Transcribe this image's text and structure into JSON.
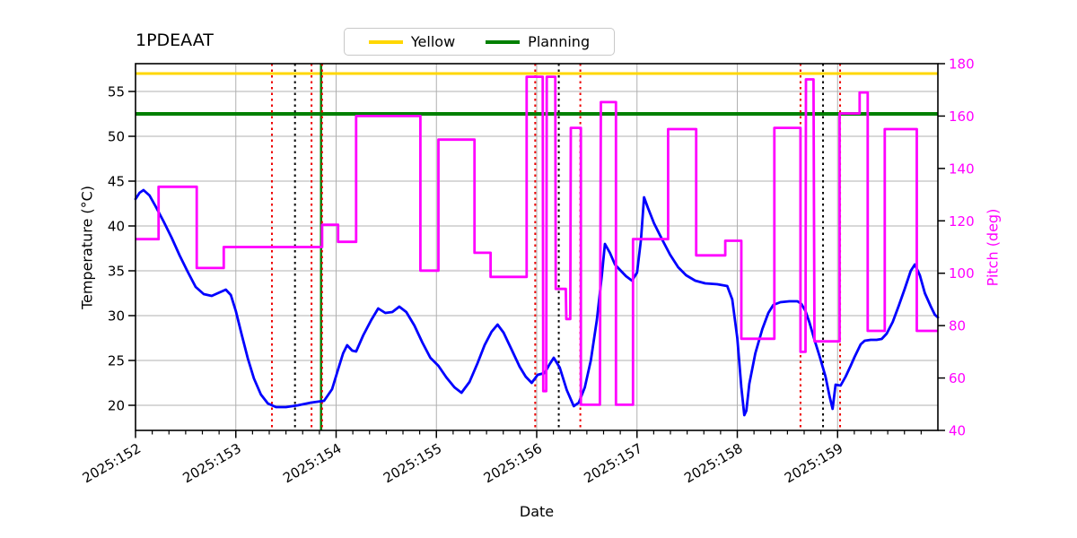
{
  "title": "1PDEAAT",
  "legend": {
    "items": [
      {
        "label": "Yellow",
        "color": "#ffd700"
      },
      {
        "label": "Planning",
        "color": "#008000"
      }
    ]
  },
  "chart_data": {
    "type": "line",
    "title": "1PDEAAT",
    "xlabel": "Date",
    "ylabel_left": "Temperature (°C)",
    "ylabel_right": "Pitch (deg)",
    "grid": true,
    "legend_position": "top-center",
    "x_tick_labels": [
      "2025:152",
      "2025:153",
      "2025:154",
      "2025:155",
      "2025:156",
      "2025:157",
      "2025:158",
      "2025:159"
    ],
    "x_tick_days": [
      152,
      153,
      154,
      155,
      156,
      157,
      158,
      159
    ],
    "x_range_days": [
      152.0,
      160.0
    ],
    "minor_ticks_per_day": 6,
    "y_left_ticks": [
      20,
      25,
      30,
      35,
      40,
      45,
      50,
      55
    ],
    "y_left_range": [
      17.2,
      58.1
    ],
    "y_right_ticks": [
      40,
      60,
      80,
      100,
      120,
      140,
      160,
      180
    ],
    "y_right_range": [
      40,
      180
    ],
    "colors": {
      "temperature": "#0000ff",
      "pitch": "#ff00ff",
      "yellow_limit": "#ffd700",
      "planning_limit": "#008000",
      "red_event": "#ee0000",
      "black_event": "#000000",
      "green_event": "#008000",
      "grid": "#b0b0b0"
    },
    "limit_lines": [
      {
        "name": "Yellow",
        "axis": "left",
        "value": 57.0,
        "color": "#ffd700",
        "width": 3
      },
      {
        "name": "Planning",
        "axis": "left",
        "value": 52.5,
        "color": "#008000",
        "width": 4
      }
    ],
    "event_lines": {
      "green_solid_days": [
        153.85
      ],
      "red_dotted_days": [
        153.36,
        153.755,
        153.86,
        155.985,
        156.435,
        158.63,
        159.025
      ],
      "black_dotted_days": [
        153.59,
        156.22,
        158.855
      ]
    },
    "series": [
      {
        "name": "temperature",
        "axis": "left",
        "color": "#0000ff",
        "points": [
          [
            152.0,
            43.0
          ],
          [
            152.04,
            43.7
          ],
          [
            152.08,
            44.0
          ],
          [
            152.14,
            43.4
          ],
          [
            152.2,
            42.2
          ],
          [
            152.28,
            40.5
          ],
          [
            152.36,
            38.7
          ],
          [
            152.44,
            36.7
          ],
          [
            152.52,
            34.9
          ],
          [
            152.6,
            33.2
          ],
          [
            152.68,
            32.4
          ],
          [
            152.76,
            32.2
          ],
          [
            152.84,
            32.6
          ],
          [
            152.9,
            32.9
          ],
          [
            152.95,
            32.3
          ],
          [
            153.0,
            30.5
          ],
          [
            153.06,
            27.8
          ],
          [
            153.12,
            25.2
          ],
          [
            153.18,
            23.0
          ],
          [
            153.25,
            21.2
          ],
          [
            153.32,
            20.2
          ],
          [
            153.4,
            19.8
          ],
          [
            153.5,
            19.8
          ],
          [
            153.62,
            20.0
          ],
          [
            153.75,
            20.3
          ],
          [
            153.88,
            20.5
          ],
          [
            153.96,
            21.8
          ],
          [
            154.02,
            24.0
          ],
          [
            154.07,
            25.8
          ],
          [
            154.11,
            26.7
          ],
          [
            154.16,
            26.1
          ],
          [
            154.2,
            26.0
          ],
          [
            154.27,
            27.8
          ],
          [
            154.35,
            29.5
          ],
          [
            154.42,
            30.8
          ],
          [
            154.49,
            30.3
          ],
          [
            154.56,
            30.4
          ],
          [
            154.63,
            31.0
          ],
          [
            154.7,
            30.4
          ],
          [
            154.78,
            28.9
          ],
          [
            154.86,
            27.0
          ],
          [
            154.94,
            25.3
          ],
          [
            155.02,
            24.4
          ],
          [
            155.1,
            23.1
          ],
          [
            155.18,
            22.0
          ],
          [
            155.25,
            21.4
          ],
          [
            155.33,
            22.6
          ],
          [
            155.41,
            24.7
          ],
          [
            155.48,
            26.7
          ],
          [
            155.55,
            28.2
          ],
          [
            155.61,
            29.0
          ],
          [
            155.67,
            28.1
          ],
          [
            155.75,
            26.2
          ],
          [
            155.83,
            24.3
          ],
          [
            155.89,
            23.2
          ],
          [
            155.95,
            22.5
          ],
          [
            156.01,
            23.4
          ],
          [
            156.08,
            23.6
          ],
          [
            156.13,
            24.6
          ],
          [
            156.17,
            25.3
          ],
          [
            156.23,
            24.2
          ],
          [
            156.3,
            21.7
          ],
          [
            156.37,
            19.9
          ],
          [
            156.42,
            20.3
          ],
          [
            156.48,
            22.0
          ],
          [
            156.54,
            25.0
          ],
          [
            156.6,
            29.5
          ],
          [
            156.65,
            34.5
          ],
          [
            156.68,
            38.0
          ],
          [
            156.73,
            37.0
          ],
          [
            156.78,
            35.7
          ],
          [
            156.83,
            35.1
          ],
          [
            156.89,
            34.4
          ],
          [
            156.95,
            33.9
          ],
          [
            157.0,
            34.8
          ],
          [
            157.04,
            38.5
          ],
          [
            157.07,
            43.2
          ],
          [
            157.11,
            42.0
          ],
          [
            157.17,
            40.3
          ],
          [
            157.25,
            38.5
          ],
          [
            157.33,
            36.8
          ],
          [
            157.41,
            35.4
          ],
          [
            157.49,
            34.5
          ],
          [
            157.58,
            33.9
          ],
          [
            157.68,
            33.6
          ],
          [
            157.8,
            33.5
          ],
          [
            157.9,
            33.3
          ],
          [
            157.95,
            31.8
          ],
          [
            158.0,
            27.5
          ],
          [
            158.04,
            22.0
          ],
          [
            158.07,
            18.9
          ],
          [
            158.09,
            19.4
          ],
          [
            158.12,
            22.4
          ],
          [
            158.18,
            25.8
          ],
          [
            158.25,
            28.5
          ],
          [
            158.31,
            30.3
          ],
          [
            158.36,
            31.2
          ],
          [
            158.43,
            31.5
          ],
          [
            158.52,
            31.6
          ],
          [
            158.6,
            31.6
          ],
          [
            158.64,
            31.3
          ],
          [
            158.68,
            30.5
          ],
          [
            158.72,
            29.2
          ],
          [
            158.77,
            27.3
          ],
          [
            158.82,
            25.5
          ],
          [
            158.88,
            23.2
          ],
          [
            158.92,
            21.0
          ],
          [
            158.95,
            19.6
          ],
          [
            158.98,
            22.3
          ],
          [
            159.03,
            22.2
          ],
          [
            159.08,
            23.2
          ],
          [
            159.13,
            24.4
          ],
          [
            159.17,
            25.4
          ],
          [
            159.23,
            26.8
          ],
          [
            159.27,
            27.2
          ],
          [
            159.33,
            27.3
          ],
          [
            159.39,
            27.3
          ],
          [
            159.44,
            27.4
          ],
          [
            159.49,
            28.0
          ],
          [
            159.55,
            29.3
          ],
          [
            159.61,
            31.1
          ],
          [
            159.67,
            33.0
          ],
          [
            159.73,
            35.0
          ],
          [
            159.77,
            35.7
          ],
          [
            159.82,
            34.5
          ],
          [
            159.87,
            32.5
          ],
          [
            159.93,
            31.0
          ],
          [
            159.97,
            30.1
          ],
          [
            160.0,
            29.8
          ]
        ]
      },
      {
        "name": "pitch",
        "axis": "right",
        "color": "#ff00ff",
        "steps": [
          [
            152.0,
            152.23,
            113
          ],
          [
            152.23,
            152.61,
            133
          ],
          [
            152.61,
            152.88,
            102
          ],
          [
            152.88,
            153.86,
            110
          ],
          [
            153.86,
            154.02,
            118.5
          ],
          [
            154.02,
            154.2,
            112
          ],
          [
            154.2,
            154.84,
            160
          ],
          [
            154.84,
            155.02,
            101
          ],
          [
            155.02,
            155.38,
            151
          ],
          [
            155.38,
            155.54,
            107.8
          ],
          [
            155.54,
            155.9,
            98.6
          ],
          [
            155.9,
            156.06,
            175
          ],
          [
            156.065,
            156.095,
            55
          ],
          [
            156.1,
            156.185,
            175
          ],
          [
            156.19,
            156.29,
            94
          ],
          [
            156.295,
            156.335,
            82.5
          ],
          [
            156.34,
            156.44,
            155.5
          ],
          [
            156.44,
            156.63,
            49.8
          ],
          [
            156.64,
            156.79,
            165.3
          ],
          [
            156.79,
            156.96,
            49.8
          ],
          [
            156.96,
            157.31,
            113
          ],
          [
            157.31,
            157.59,
            155
          ],
          [
            157.59,
            157.88,
            106.8
          ],
          [
            157.88,
            158.04,
            112.4
          ],
          [
            158.04,
            158.37,
            75
          ],
          [
            158.37,
            158.63,
            155.5
          ],
          [
            158.63,
            158.68,
            70
          ],
          [
            158.685,
            158.76,
            174
          ],
          [
            158.77,
            159.02,
            74
          ],
          [
            159.02,
            159.22,
            161
          ],
          [
            159.22,
            159.3,
            169
          ],
          [
            159.3,
            159.47,
            78
          ],
          [
            159.47,
            159.79,
            155
          ],
          [
            159.79,
            160.0,
            78
          ]
        ]
      }
    ]
  }
}
